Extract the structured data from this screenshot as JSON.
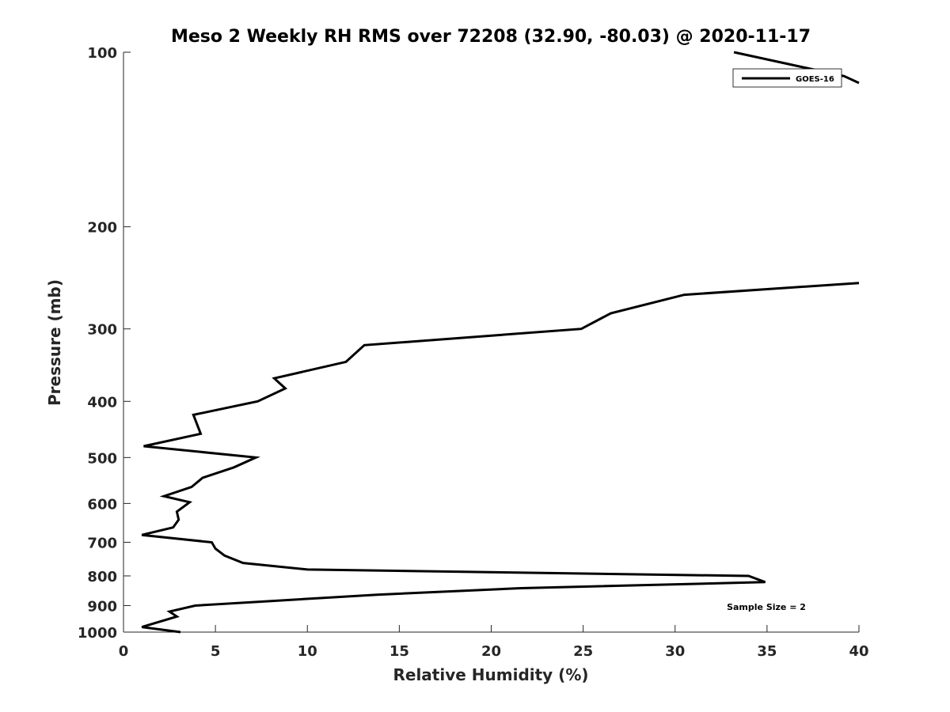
{
  "chart_data": {
    "type": "line",
    "title": "Meso 2 Weekly RH RMS over 72208 (32.90, -80.03) @ 2020-11-17",
    "xlabel": "Relative Humidity (%)",
    "ylabel": "Pressure (mb)",
    "xlim": [
      0,
      40
    ],
    "ylim": [
      100,
      1000
    ],
    "y_scale": "log",
    "y_reversed": true,
    "grid": false,
    "legend_position": "top-right",
    "x_ticks": [
      0,
      5,
      10,
      15,
      20,
      25,
      30,
      35,
      40
    ],
    "x_tick_labels": [
      "0",
      "5",
      "10",
      "15",
      "20",
      "25",
      "30",
      "35",
      "40"
    ],
    "y_ticks": [
      100,
      200,
      300,
      400,
      500,
      600,
      700,
      800,
      900,
      1000
    ],
    "y_tick_labels": [
      "100",
      "200",
      "300",
      "400",
      "500",
      "600",
      "700",
      "800",
      "900",
      "1000"
    ],
    "annotation": "Sample Size = 2",
    "colors": {
      "line": "#000000",
      "axis": "#262626"
    },
    "series": [
      {
        "name": "GOES-16",
        "segments": [
          [
            {
              "x": 33.2,
              "p": 100
            },
            {
              "x": 39.2,
              "p": 110
            },
            {
              "x": 40.0,
              "p": 113
            }
          ],
          [
            {
              "x": 40.0,
              "p": 250
            },
            {
              "x": 30.5,
              "p": 262
            },
            {
              "x": 26.5,
              "p": 282
            },
            {
              "x": 24.9,
              "p": 300
            },
            {
              "x": 13.1,
              "p": 320
            },
            {
              "x": 12.1,
              "p": 342
            },
            {
              "x": 8.2,
              "p": 365
            },
            {
              "x": 8.8,
              "p": 380
            },
            {
              "x": 7.3,
              "p": 400
            },
            {
              "x": 3.8,
              "p": 422
            },
            {
              "x": 4.2,
              "p": 455
            },
            {
              "x": 1.1,
              "p": 478
            },
            {
              "x": 7.2,
              "p": 500
            },
            {
              "x": 6.0,
              "p": 520
            },
            {
              "x": 4.3,
              "p": 542
            },
            {
              "x": 3.7,
              "p": 562
            },
            {
              "x": 2.2,
              "p": 583
            },
            {
              "x": 3.6,
              "p": 597
            },
            {
              "x": 2.9,
              "p": 620
            },
            {
              "x": 3.0,
              "p": 640
            },
            {
              "x": 2.7,
              "p": 660
            },
            {
              "x": 1.0,
              "p": 680
            },
            {
              "x": 4.8,
              "p": 700
            },
            {
              "x": 5.0,
              "p": 718
            },
            {
              "x": 5.5,
              "p": 738
            },
            {
              "x": 6.5,
              "p": 760
            },
            {
              "x": 10.0,
              "p": 780
            },
            {
              "x": 34.0,
              "p": 800
            },
            {
              "x": 34.9,
              "p": 820
            },
            {
              "x": 21.6,
              "p": 840
            },
            {
              "x": 13.8,
              "p": 862
            },
            {
              "x": 3.9,
              "p": 900
            },
            {
              "x": 2.5,
              "p": 922
            },
            {
              "x": 2.9,
              "p": 940
            },
            {
              "x": 1.0,
              "p": 980
            },
            {
              "x": 3.1,
              "p": 1000
            }
          ]
        ]
      }
    ]
  }
}
